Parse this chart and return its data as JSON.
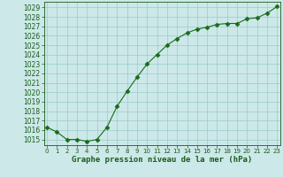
{
  "x": [
    0,
    1,
    2,
    3,
    4,
    5,
    6,
    7,
    8,
    9,
    10,
    11,
    12,
    13,
    14,
    15,
    16,
    17,
    18,
    19,
    20,
    21,
    22,
    23
  ],
  "y": [
    1016.3,
    1015.8,
    1015.0,
    1015.0,
    1014.8,
    1015.0,
    1016.3,
    1018.5,
    1020.1,
    1021.6,
    1023.0,
    1024.0,
    1025.0,
    1025.7,
    1026.3,
    1026.7,
    1026.9,
    1027.2,
    1027.3,
    1027.3,
    1027.8,
    1027.9,
    1028.4,
    1029.1
  ],
  "line_color": "#1a6b1a",
  "marker": "D",
  "marker_size": 2.5,
  "bg_color": "#cce8e8",
  "grid_color": "#99cccc",
  "xlabel": "Graphe pression niveau de la mer (hPa)",
  "xlabel_color": "#1a5c1a",
  "tick_color": "#1a5c1a",
  "ylim_min": 1014.4,
  "ylim_max": 1029.6,
  "xlim_min": -0.3,
  "xlim_max": 23.3,
  "ytick_min": 1015,
  "ytick_max": 1029,
  "ytick_step": 1,
  "xlabel_fontsize": 6.5,
  "ytick_fontsize": 5.5,
  "xtick_fontsize": 5.0
}
